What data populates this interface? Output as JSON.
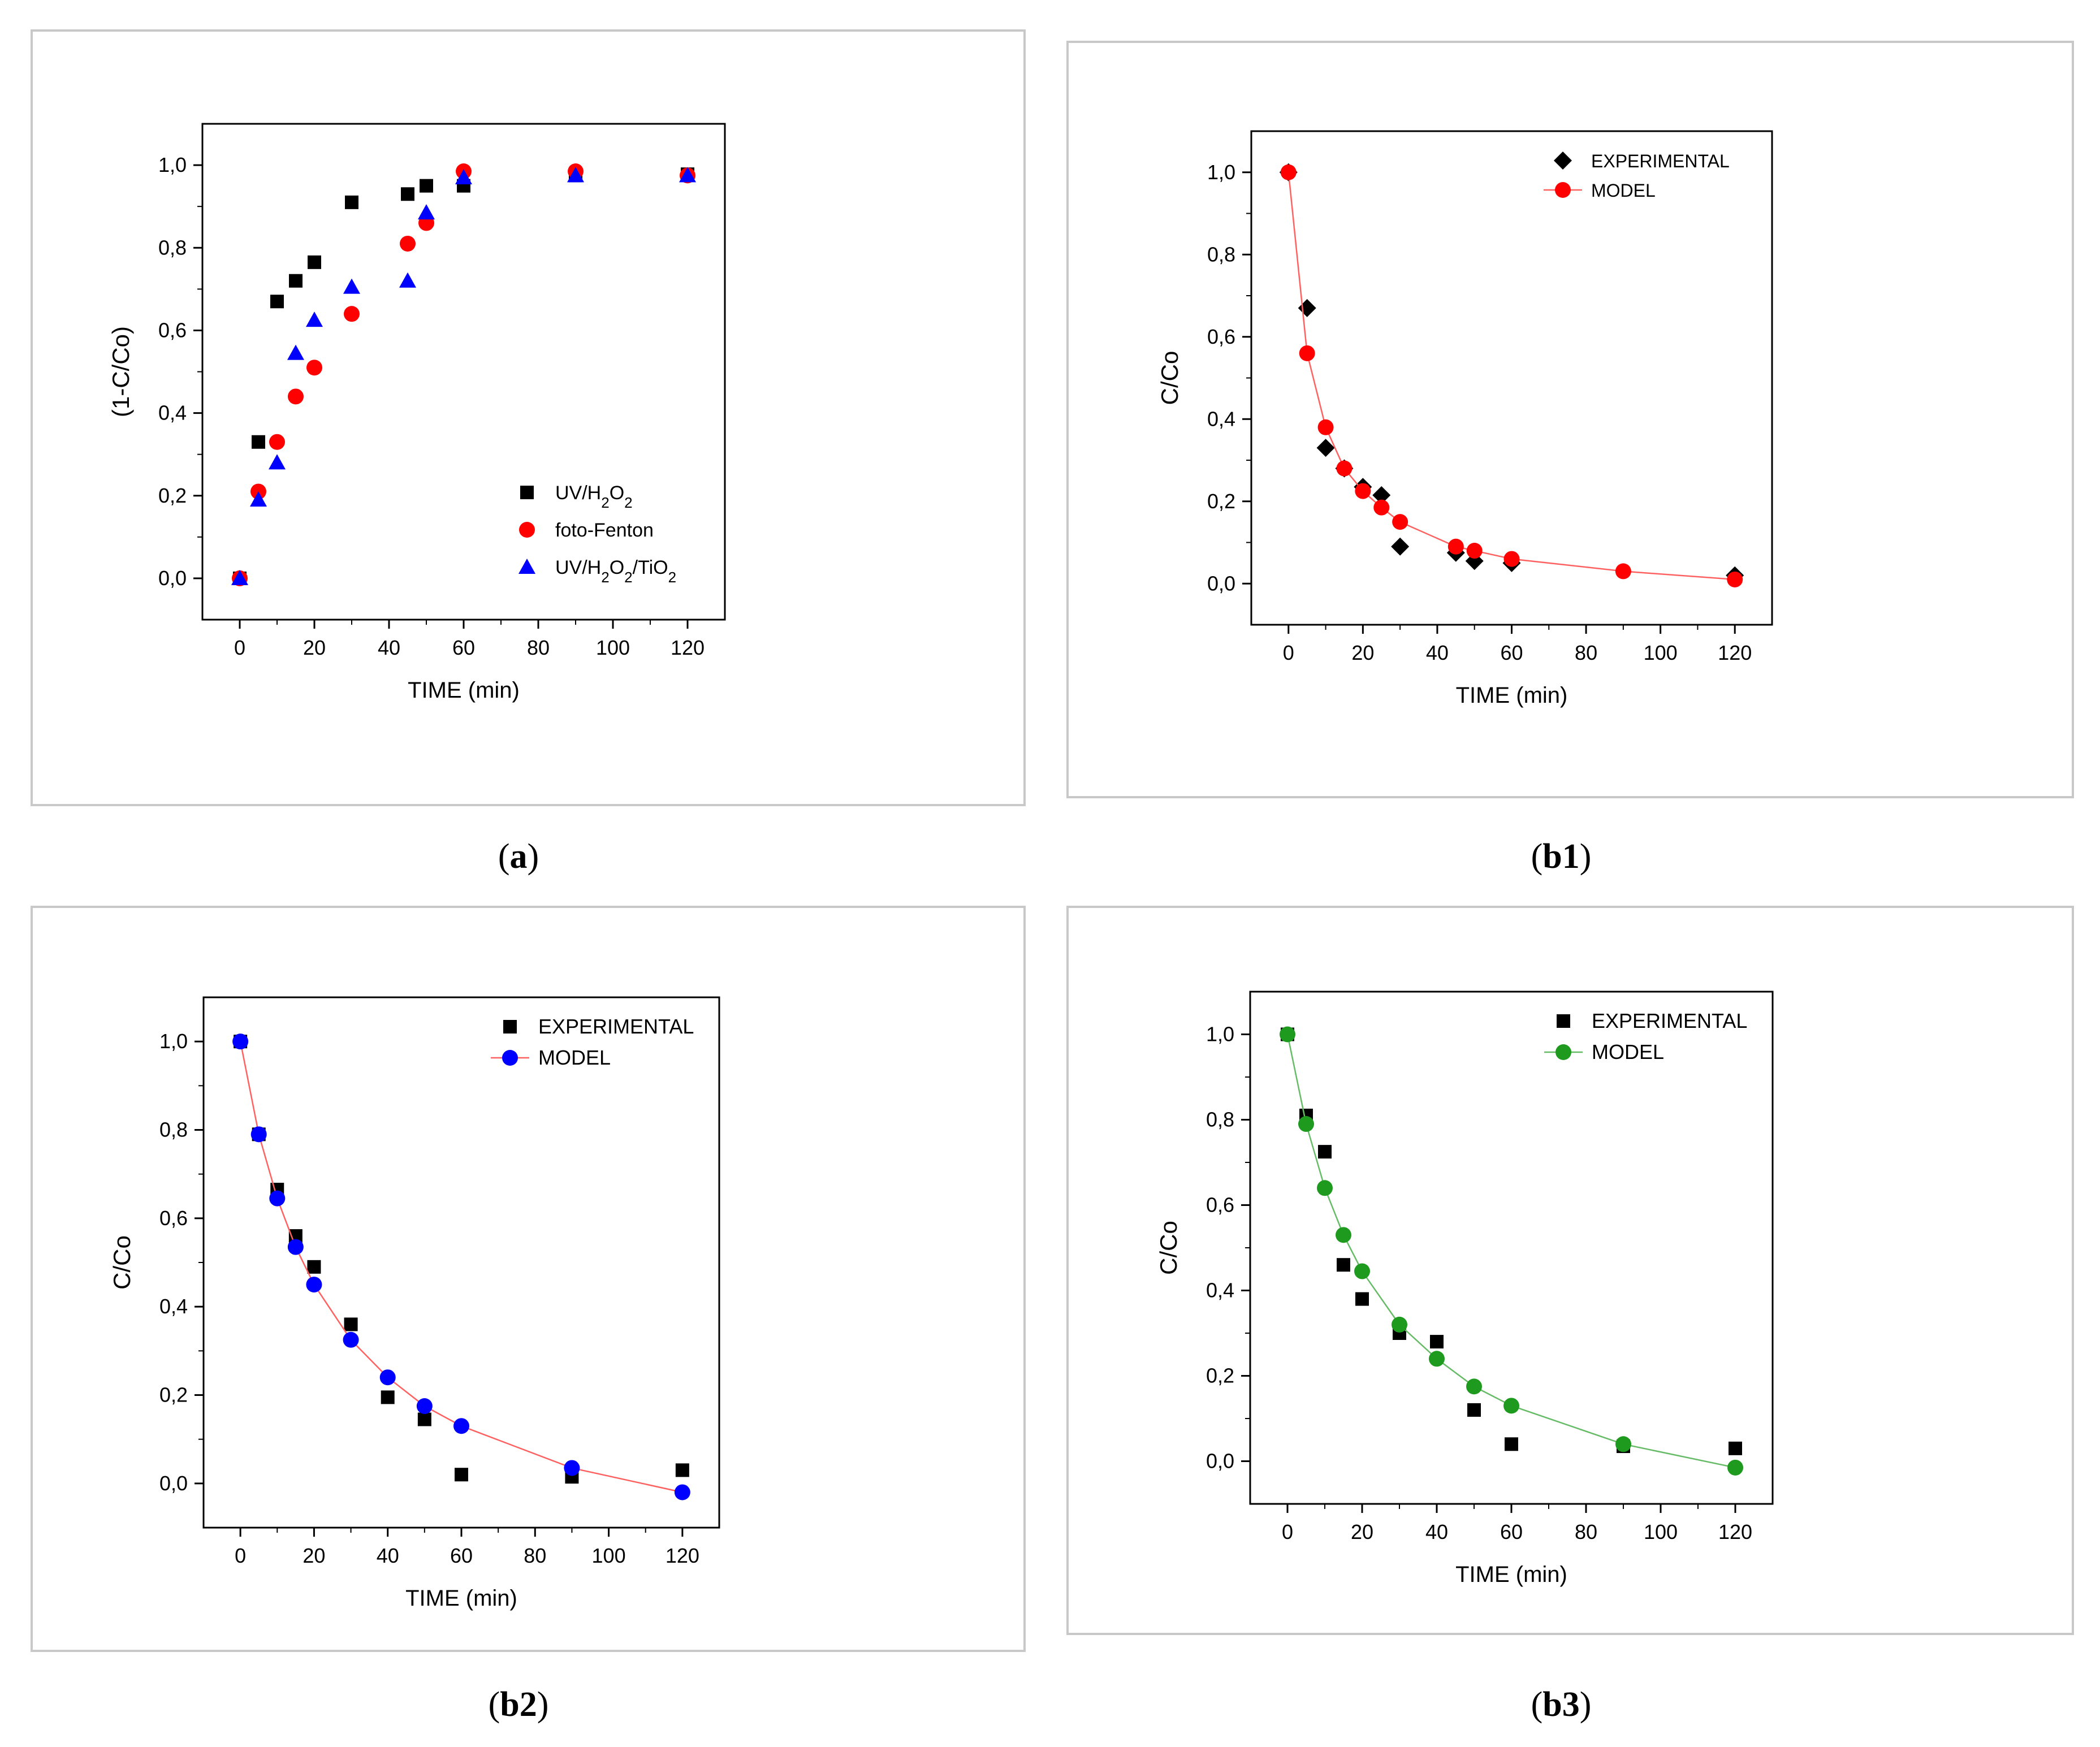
{
  "panels": [
    {
      "id": "a",
      "caption": "a",
      "chart_data": {
        "type": "scatter",
        "title": "",
        "xlabel": "TIME (min)",
        "ylabel": "(1-C/Co)",
        "xlim": [
          -10,
          130
        ],
        "ylim": [
          -0.1,
          1.1
        ],
        "xticks": [
          0,
          20,
          40,
          60,
          80,
          100,
          120
        ],
        "yticks": [
          0.0,
          0.2,
          0.4,
          0.6,
          0.8,
          1.0
        ],
        "xtick_labels": [
          "0",
          "20",
          "40",
          "60",
          "80",
          "100",
          "120"
        ],
        "ytick_labels": [
          "0,0",
          "0,2",
          "0,4",
          "0,6",
          "0,8",
          "1,0"
        ],
        "legend_position": "bottom-right",
        "series": [
          {
            "name": "UV/H2O2",
            "label_parts": [
              [
                "UV/H",
                "n"
              ],
              [
                "2",
                "sub"
              ],
              [
                "O",
                "n"
              ],
              [
                "2",
                "sub"
              ]
            ],
            "marker": "square",
            "color": "#000000",
            "line": false,
            "x": [
              0,
              5,
              10,
              15,
              20,
              30,
              45,
              50,
              60,
              90,
              120
            ],
            "y": [
              0.0,
              0.33,
              0.67,
              0.72,
              0.765,
              0.91,
              0.93,
              0.95,
              0.95,
              0.975,
              0.978
            ]
          },
          {
            "name": "foto-Fenton",
            "label_parts": [
              [
                "foto-Fenton",
                "n"
              ]
            ],
            "marker": "circle",
            "color": "#ff0000",
            "line": false,
            "x": [
              0,
              5,
              10,
              15,
              20,
              30,
              45,
              50,
              60,
              90,
              120
            ],
            "y": [
              0.0,
              0.21,
              0.33,
              0.44,
              0.51,
              0.64,
              0.81,
              0.86,
              0.985,
              0.985,
              0.975
            ]
          },
          {
            "name": "UV/H2O2/TiO2",
            "label_parts": [
              [
                "UV/H",
                "n"
              ],
              [
                "2",
                "sub"
              ],
              [
                "O",
                "n"
              ],
              [
                "2",
                "sub"
              ],
              [
                "/TiO",
                "n"
              ],
              [
                "2",
                "sub"
              ]
            ],
            "marker": "triangle",
            "color": "#0000ff",
            "line": false,
            "x": [
              0,
              5,
              10,
              15,
              20,
              30,
              45,
              50,
              60,
              90,
              120
            ],
            "y": [
              0.0,
              0.19,
              0.28,
              0.545,
              0.625,
              0.705,
              0.72,
              0.885,
              0.97,
              0.975,
              0.975
            ]
          }
        ]
      }
    },
    {
      "id": "b1",
      "caption": "b1",
      "chart_data": {
        "type": "scatter",
        "title": "",
        "xlabel": "TIME (min)",
        "ylabel": "C/Co",
        "xlim": [
          -10,
          130
        ],
        "ylim": [
          -0.1,
          1.1
        ],
        "xticks": [
          0,
          20,
          40,
          60,
          80,
          100,
          120
        ],
        "yticks": [
          0.0,
          0.2,
          0.4,
          0.6,
          0.8,
          1.0
        ],
        "xtick_labels": [
          "0",
          "20",
          "40",
          "60",
          "80",
          "100",
          "120"
        ],
        "ytick_labels": [
          "0,0",
          "0,2",
          "0,4",
          "0,6",
          "0,8",
          "1,0"
        ],
        "legend_position": "top-right",
        "series": [
          {
            "name": "EXPERIMENTAL",
            "label_parts": [
              [
                "EXPERIMENTAL",
                "n"
              ]
            ],
            "marker": "diamond",
            "color": "#000000",
            "line": false,
            "x": [
              0,
              5,
              10,
              15,
              20,
              25,
              30,
              45,
              50,
              60,
              120
            ],
            "y": [
              1.0,
              0.67,
              0.33,
              0.28,
              0.235,
              0.215,
              0.09,
              0.075,
              0.055,
              0.05,
              0.02
            ]
          },
          {
            "name": "MODEL",
            "label_parts": [
              [
                "MODEL",
                "n"
              ]
            ],
            "marker": "circle",
            "color": "#ff0000",
            "line": true,
            "line_color": "#ff6060",
            "x": [
              0,
              5,
              10,
              15,
              20,
              25,
              30,
              45,
              50,
              60,
              90,
              120
            ],
            "y": [
              1.0,
              0.56,
              0.38,
              0.28,
              0.225,
              0.185,
              0.15,
              0.09,
              0.08,
              0.06,
              0.03,
              0.01
            ]
          }
        ]
      }
    },
    {
      "id": "b2",
      "caption": "b2",
      "chart_data": {
        "type": "scatter",
        "title": "",
        "xlabel": "TIME (min)",
        "ylabel": "C/Co",
        "xlim": [
          -10,
          130
        ],
        "ylim": [
          -0.1,
          1.1
        ],
        "xticks": [
          0,
          20,
          40,
          60,
          80,
          100,
          120
        ],
        "yticks": [
          0.0,
          0.2,
          0.4,
          0.6,
          0.8,
          1.0
        ],
        "xtick_labels": [
          "0",
          "20",
          "40",
          "60",
          "80",
          "100",
          "120"
        ],
        "ytick_labels": [
          "0,0",
          "0,2",
          "0,4",
          "0,6",
          "0,8",
          "1,0"
        ],
        "legend_position": "top-right",
        "series": [
          {
            "name": "EXPERIMENTAL",
            "label_parts": [
              [
                "EXPERIMENTAL",
                "n"
              ]
            ],
            "marker": "square",
            "color": "#000000",
            "line": false,
            "x": [
              0,
              5,
              10,
              15,
              20,
              30,
              40,
              50,
              60,
              90,
              120
            ],
            "y": [
              1.0,
              0.79,
              0.665,
              0.56,
              0.49,
              0.36,
              0.195,
              0.145,
              0.02,
              0.015,
              0.03
            ]
          },
          {
            "name": "MODEL",
            "label_parts": [
              [
                "MODEL",
                "n"
              ]
            ],
            "marker": "circle",
            "color": "#0000ff",
            "line": true,
            "line_color": "#ff6060",
            "x": [
              0,
              5,
              10,
              15,
              20,
              30,
              40,
              50,
              60,
              90,
              120
            ],
            "y": [
              1.0,
              0.79,
              0.645,
              0.535,
              0.45,
              0.325,
              0.24,
              0.175,
              0.13,
              0.035,
              -0.02
            ]
          }
        ]
      }
    },
    {
      "id": "b3",
      "caption": "b3",
      "chart_data": {
        "type": "scatter",
        "title": "",
        "xlabel": "TIME (min)",
        "ylabel": "C/Co",
        "xlim": [
          -10,
          130
        ],
        "ylim": [
          -0.1,
          1.1
        ],
        "xticks": [
          0,
          20,
          40,
          60,
          80,
          100,
          120
        ],
        "yticks": [
          0.0,
          0.2,
          0.4,
          0.6,
          0.8,
          1.0
        ],
        "xtick_labels": [
          "0",
          "20",
          "40",
          "60",
          "80",
          "100",
          "120"
        ],
        "ytick_labels": [
          "0,0",
          "0,2",
          "0,4",
          "0,6",
          "0,8",
          "1,0"
        ],
        "legend_position": "top-right",
        "series": [
          {
            "name": "EXPERIMENTAL",
            "label_parts": [
              [
                "EXPERIMENTAL",
                "n"
              ]
            ],
            "marker": "square",
            "color": "#000000",
            "line": false,
            "x": [
              0,
              5,
              10,
              15,
              20,
              30,
              40,
              50,
              60,
              90,
              120
            ],
            "y": [
              1.0,
              0.81,
              0.725,
              0.46,
              0.38,
              0.3,
              0.28,
              0.12,
              0.04,
              0.035,
              0.03
            ]
          },
          {
            "name": "MODEL",
            "label_parts": [
              [
                "MODEL",
                "n"
              ]
            ],
            "marker": "circle",
            "color": "#1e9a1e",
            "line": true,
            "line_color": "#66bb66",
            "x": [
              0,
              5,
              10,
              15,
              20,
              30,
              40,
              50,
              60,
              90,
              120
            ],
            "y": [
              1.0,
              0.79,
              0.64,
              0.53,
              0.445,
              0.32,
              0.24,
              0.175,
              0.13,
              0.04,
              -0.015
            ]
          }
        ]
      }
    }
  ]
}
